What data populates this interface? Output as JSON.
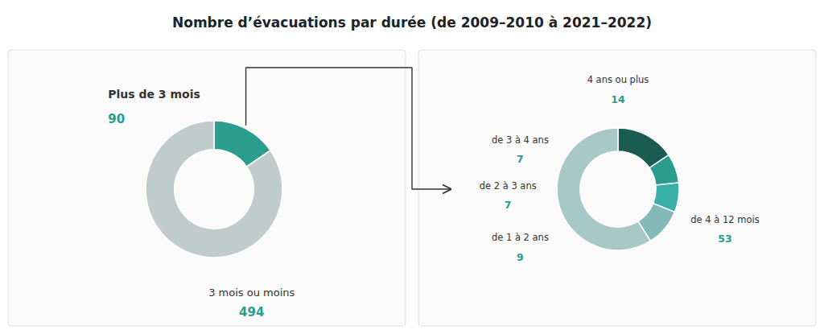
{
  "chart_data": [
    {
      "type": "pie",
      "title": "Nombre d’évacuations par durée (de 2009–2010 à 2021–2022)",
      "categories": [
        "Plus de 3 mois",
        "3 mois ou moins"
      ],
      "values": [
        90,
        494
      ],
      "colors": [
        "#2a9d8f",
        "#c0cccc"
      ],
      "data_labels": true
    },
    {
      "type": "pie",
      "categories": [
        "4 ans ou plus",
        "de 3 à 4 ans",
        "de 2 à 3 ans",
        "de 1 à 2 ans",
        "de 4 à 12 mois"
      ],
      "values": [
        14,
        7,
        7,
        9,
        53
      ],
      "colors": [
        "#1a5c52",
        "#2a9d8f",
        "#3aafa9",
        "#85b8b8",
        "#a8c8c8"
      ],
      "data_labels": true
    }
  ]
}
